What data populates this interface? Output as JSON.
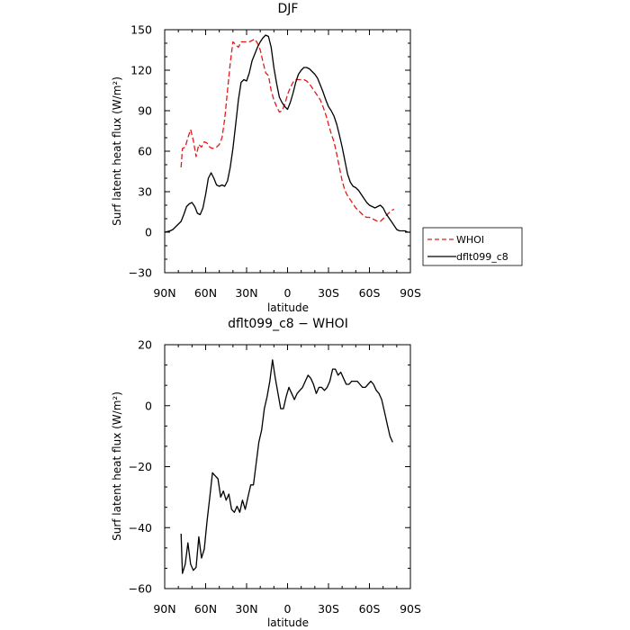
{
  "chart_data": [
    {
      "type": "line",
      "title": "DJF",
      "xlabel": "latitude",
      "ylabel": "Surf latent heat flux (W/m²)",
      "xlim": [
        90,
        -90
      ],
      "ylim": [
        -30,
        150
      ],
      "xticks": [
        90,
        60,
        30,
        0,
        -30,
        -60,
        -90
      ],
      "xtick_labels": [
        "90N",
        "60N",
        "30N",
        "0",
        "30S",
        "60S",
        "90S"
      ],
      "yticks": [
        -30,
        0,
        30,
        60,
        90,
        120,
        150
      ],
      "ytick_labels": [
        "−30",
        "0",
        "30",
        "60",
        "90",
        "120",
        "150"
      ],
      "legend": "outside-right",
      "series": [
        {
          "name": "WHOI",
          "color": "#e31a1c",
          "dash": "dashed",
          "x": [
            78,
            77,
            75,
            73,
            71,
            69,
            67,
            65,
            63,
            61,
            59,
            57,
            55,
            52,
            50,
            48,
            46,
            44,
            42,
            40,
            38,
            36,
            34,
            32,
            30,
            28,
            26,
            24,
            22,
            20,
            18,
            16,
            14,
            12,
            10,
            8,
            6,
            4,
            2,
            0,
            -2,
            -4,
            -6,
            -8,
            -10,
            -12,
            -14,
            -16,
            -18,
            -20,
            -22,
            -24,
            -26,
            -28,
            -30,
            -32,
            -34,
            -36,
            -38,
            -40,
            -42,
            -44,
            -46,
            -48,
            -50,
            -52,
            -54,
            -56,
            -58,
            -60,
            -62,
            -64,
            -66,
            -68,
            -70,
            -72,
            -74,
            -76,
            -78
          ],
          "y": [
            48,
            62,
            63,
            70,
            76,
            68,
            56,
            65,
            63,
            67,
            66,
            63,
            62,
            63,
            65,
            70,
            84,
            105,
            125,
            141,
            139,
            137,
            141,
            141,
            141,
            141,
            142,
            143,
            140,
            135,
            126,
            118,
            116,
            105,
            98,
            93,
            89,
            90,
            95,
            102,
            107,
            111,
            113,
            113,
            113,
            113,
            112,
            110,
            107,
            104,
            101,
            98,
            93,
            87,
            80,
            73,
            67,
            58,
            48,
            38,
            31,
            27,
            24,
            21,
            18,
            16,
            14,
            12,
            11,
            11,
            10,
            9,
            8,
            8,
            10,
            12,
            14,
            16,
            17
          ]
        },
        {
          "name": "dflt099_c8",
          "color": "#000000",
          "dash": "solid",
          "x": [
            90,
            88,
            86,
            84,
            82,
            80,
            78,
            76,
            74,
            72,
            70,
            68,
            66,
            64,
            62,
            60,
            58,
            56,
            54,
            52,
            50,
            48,
            46,
            44,
            42,
            40,
            38,
            36,
            34,
            32,
            30,
            28,
            26,
            24,
            22,
            20,
            18,
            16,
            14,
            12,
            10,
            8,
            6,
            4,
            2,
            0,
            -2,
            -4,
            -6,
            -8,
            -10,
            -12,
            -14,
            -16,
            -18,
            -20,
            -22,
            -24,
            -26,
            -28,
            -30,
            -32,
            -34,
            -36,
            -38,
            -40,
            -42,
            -44,
            -46,
            -48,
            -50,
            -52,
            -54,
            -56,
            -58,
            -60,
            -62,
            -64,
            -66,
            -68,
            -70,
            -72,
            -74,
            -76,
            -78,
            -80,
            -82,
            -84,
            -86,
            -88,
            -90
          ],
          "y": [
            0,
            0.5,
            1,
            2,
            4,
            6,
            8,
            13,
            19,
            21,
            22,
            19,
            14,
            13,
            18,
            28,
            40,
            44,
            40,
            35,
            34,
            35,
            34,
            38,
            48,
            62,
            80,
            98,
            111,
            113,
            112,
            118,
            127,
            132,
            137,
            141,
            144,
            146,
            145,
            137,
            122,
            110,
            100,
            96,
            93,
            91,
            96,
            103,
            111,
            117,
            120,
            122,
            122,
            121,
            119,
            117,
            114,
            109,
            104,
            98,
            93,
            90,
            86,
            80,
            72,
            63,
            53,
            43,
            37,
            34,
            33,
            31,
            28,
            25,
            22,
            20,
            19,
            18,
            19,
            20,
            18,
            14,
            11,
            8,
            5,
            2,
            1,
            1,
            1,
            0,
            0
          ]
        }
      ]
    },
    {
      "type": "line",
      "title": "dflt099_c8 − WHOI",
      "xlabel": "latitude",
      "ylabel": "Surf latent heat flux (W/m²)",
      "xlim": [
        90,
        -90
      ],
      "ylim": [
        -60,
        20
      ],
      "xticks": [
        90,
        60,
        30,
        0,
        -30,
        -60,
        -90
      ],
      "xtick_labels": [
        "90N",
        "60N",
        "30N",
        "0",
        "30S",
        "60S",
        "90S"
      ],
      "yticks": [
        -60,
        -40,
        -20,
        0,
        20
      ],
      "ytick_labels": [
        "−60",
        "−40",
        "−20",
        "0",
        "20"
      ],
      "series": [
        {
          "color": "#000000",
          "dash": "solid",
          "x": [
            78,
            77,
            75,
            73,
            71,
            69,
            67,
            65,
            63,
            61,
            59,
            57,
            55,
            53,
            51,
            49,
            47,
            45,
            43,
            41,
            39,
            37,
            35,
            33,
            31,
            29,
            27,
            25,
            23,
            21,
            19,
            17,
            15,
            13,
            11,
            9,
            7,
            5,
            3,
            1,
            -1,
            -3,
            -5,
            -7,
            -9,
            -11,
            -13,
            -15,
            -17,
            -19,
            -21,
            -23,
            -25,
            -27,
            -29,
            -31,
            -33,
            -35,
            -37,
            -39,
            -41,
            -43,
            -45,
            -47,
            -49,
            -51,
            -53,
            -55,
            -57,
            -59,
            -61,
            -63,
            -65,
            -67,
            -69,
            -71,
            -73,
            -75,
            -77
          ],
          "y": [
            -42,
            -55,
            -52,
            -45,
            -52,
            -54,
            -53,
            -43,
            -50,
            -47,
            -38,
            -30,
            -22,
            -23,
            -24,
            -30,
            -28,
            -31,
            -29,
            -34,
            -35,
            -33,
            -35,
            -31,
            -34,
            -30,
            -26,
            -26,
            -19,
            -12,
            -8,
            -1,
            3,
            8,
            15,
            9,
            4,
            -1,
            -1,
            3,
            6,
            4,
            2,
            4,
            5,
            6,
            8,
            10,
            9,
            7,
            4,
            6,
            6,
            5,
            6,
            8,
            12,
            12,
            10,
            11,
            9,
            7,
            7,
            8,
            8,
            8,
            7,
            6,
            6,
            7,
            8,
            7,
            5,
            4,
            2,
            -2,
            -6,
            -10,
            -12
          ]
        }
      ]
    }
  ],
  "legend_labels": [
    "WHOI",
    "dflt099_c8"
  ]
}
